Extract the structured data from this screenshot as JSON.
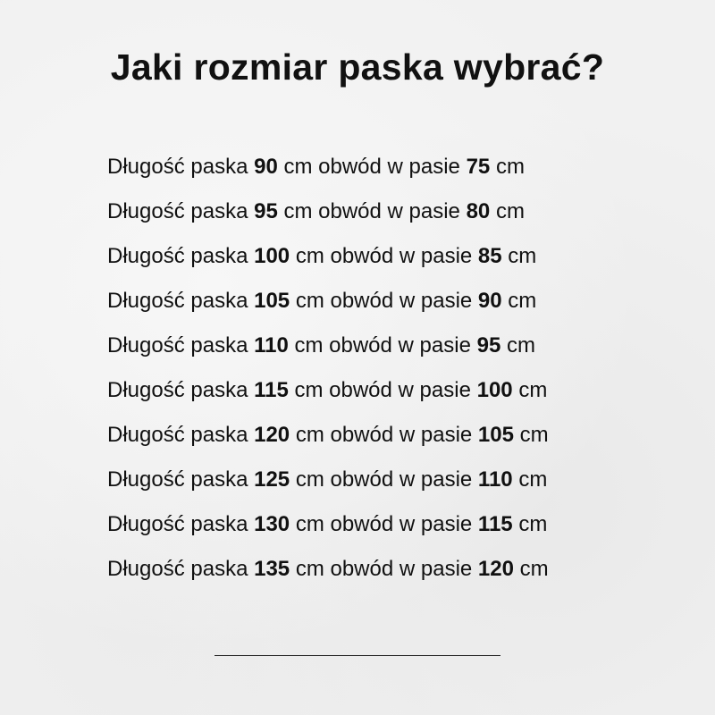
{
  "title": "Jaki rozmiar paska wybrać?",
  "labels": {
    "length": "Długość paska",
    "unit": "cm",
    "waist": "obwód w pasie"
  },
  "sizes": [
    {
      "length": "90",
      "waist": "75"
    },
    {
      "length": "95",
      "waist": "80"
    },
    {
      "length": "100",
      "waist": "85"
    },
    {
      "length": "105",
      "waist": "90"
    },
    {
      "length": "110",
      "waist": "95"
    },
    {
      "length": "115",
      "waist": "100"
    },
    {
      "length": "120",
      "waist": "105"
    },
    {
      "length": "125",
      "waist": "110"
    },
    {
      "length": "130",
      "waist": "115"
    },
    {
      "length": "135",
      "waist": "120"
    }
  ]
}
